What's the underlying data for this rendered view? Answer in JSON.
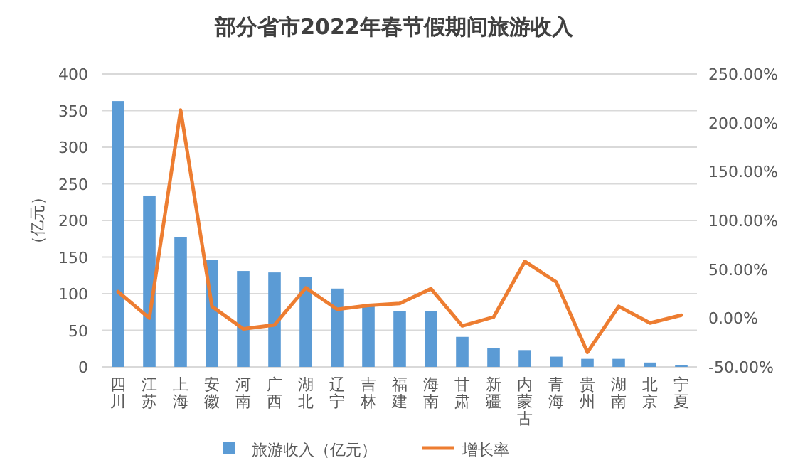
{
  "chart_data": {
    "type": "bar",
    "title": "部分省市2022年春节假期间旅游收入",
    "ylabel": "（亿元）",
    "categories": [
      "四川",
      "江苏",
      "上海",
      "安徽",
      "河南",
      "广西",
      "湖北",
      "辽宁",
      "吉林",
      "福建",
      "海南",
      "甘肃",
      "新疆",
      "内蒙古",
      "青海",
      "贵州",
      "湖南",
      "北京",
      "宁夏"
    ],
    "series": [
      {
        "name": "旅游收入（亿元）",
        "color": "#5b9bd5",
        "values": [
          363,
          234,
          177,
          146,
          131,
          129,
          123,
          107,
          84,
          76,
          76,
          41,
          26,
          23,
          14,
          11,
          11,
          6,
          2
        ]
      },
      {
        "name": "增长率",
        "type": "line",
        "axis": "y2",
        "color": "#ed7d31",
        "values": [
          27,
          0,
          213,
          12,
          -11,
          -7,
          31,
          9,
          13,
          15,
          30,
          -8,
          1,
          58,
          37,
          -35,
          12,
          -5,
          3
        ]
      }
    ],
    "ylim": [
      0,
      400
    ],
    "yticks": [
      0,
      50,
      100,
      150,
      200,
      250,
      300,
      350,
      400
    ],
    "y2lim": [
      -50,
      250
    ],
    "y2ticks": [
      {
        "value": -50,
        "label": "-50.00%"
      },
      {
        "value": 0,
        "label": "0.00%"
      },
      {
        "value": 50,
        "label": "50.00%"
      },
      {
        "value": 100,
        "label": "100.00%"
      },
      {
        "value": 150,
        "label": "150.00%"
      },
      {
        "value": 200,
        "label": "200.00%"
      },
      {
        "value": 250,
        "label": "250.00%"
      }
    ],
    "grid": "y",
    "legend": "bottom",
    "marker": "none"
  }
}
